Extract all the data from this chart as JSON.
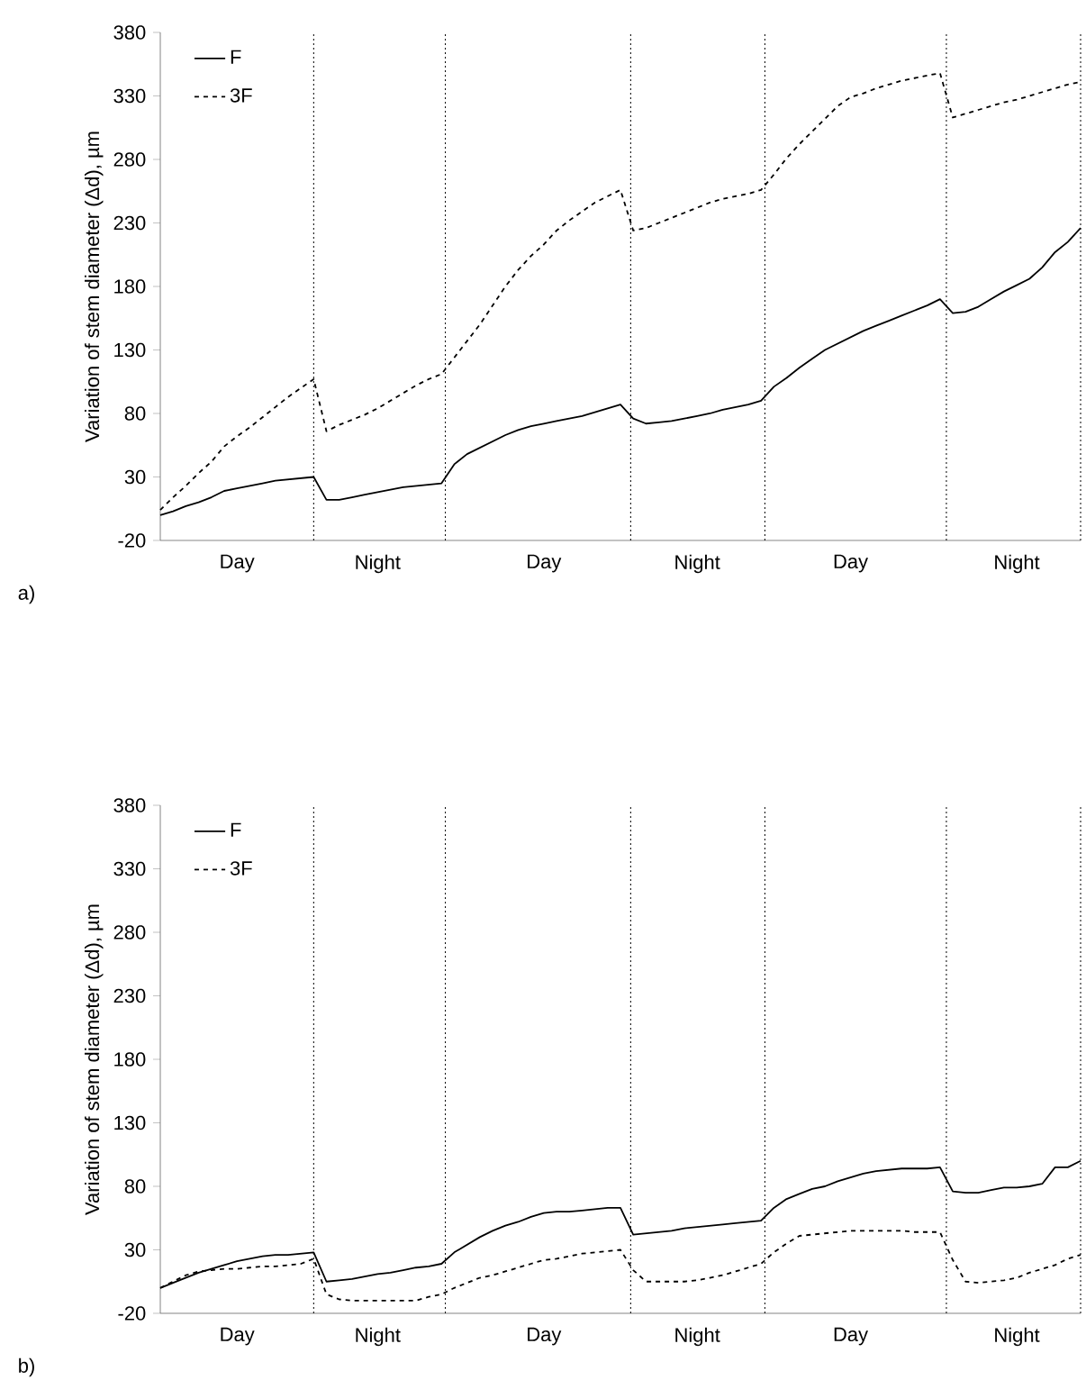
{
  "chart_data": [
    {
      "type": "line",
      "ylabel": "Variation of stem diameter (Δd), µm",
      "annotations": [
        "a)"
      ],
      "categories": [
        null,
        null,
        null,
        null,
        null,
        null,
        "Day",
        null,
        null,
        null,
        null,
        null,
        null,
        null,
        null,
        null,
        null,
        "Night",
        null,
        null,
        null,
        null,
        null,
        null,
        null,
        null,
        null,
        null,
        null,
        null,
        "Day",
        null,
        null,
        null,
        null,
        null,
        null,
        null,
        null,
        null,
        null,
        null,
        "Night",
        null,
        null,
        null,
        null,
        null,
        null,
        null,
        null,
        null,
        null,
        null,
        "Day",
        null,
        null,
        null,
        null,
        null,
        null,
        null,
        null,
        null,
        null,
        null,
        null,
        "Night",
        null,
        null,
        null,
        null,
        null
      ],
      "ylim": [
        -20,
        380
      ],
      "yticks": [
        -20,
        30,
        80,
        130,
        180,
        230,
        280,
        330,
        380
      ],
      "legend": "top left",
      "grid": false,
      "marker": "none",
      "series": [
        {
          "name": "F",
          "color": "#000000",
          "line_style": "solid",
          "values": [
            0,
            3,
            7,
            10,
            14,
            19,
            21,
            23,
            25,
            27,
            28,
            29,
            30,
            12,
            12,
            14,
            16,
            18,
            20,
            22,
            23,
            24,
            25,
            40,
            48,
            53,
            58,
            63,
            67,
            70,
            72,
            74,
            76,
            78,
            81,
            84,
            87,
            76,
            72,
            73,
            74,
            76,
            78,
            80,
            83,
            85,
            87,
            90,
            101,
            108,
            116,
            123,
            130,
            135,
            140,
            145,
            149,
            153,
            157,
            161,
            165,
            170,
            159,
            160,
            164,
            170,
            176,
            181,
            186,
            195,
            207,
            215,
            226
          ]
        },
        {
          "name": "3F",
          "color": "#000000",
          "line_style": "dashed",
          "values": [
            4,
            14,
            23,
            33,
            42,
            54,
            62,
            69,
            77,
            85,
            93,
            100,
            107,
            66,
            71,
            75,
            79,
            84,
            90,
            96,
            102,
            107,
            111,
            124,
            137,
            150,
            165,
            180,
            193,
            204,
            213,
            224,
            232,
            239,
            246,
            251,
            256,
            224,
            226,
            230,
            234,
            238,
            242,
            246,
            249,
            251,
            253,
            256,
            268,
            281,
            292,
            302,
            312,
            322,
            329,
            332,
            336,
            339,
            342,
            344,
            346,
            348,
            313,
            316,
            319,
            322,
            325,
            327,
            330,
            333,
            336,
            339,
            341
          ]
        }
      ]
    },
    {
      "type": "line",
      "ylabel": "Variation of stem diameter (Δd), µm",
      "annotations": [
        "b)"
      ],
      "categories": [
        null,
        null,
        null,
        null,
        null,
        null,
        "Day",
        null,
        null,
        null,
        null,
        null,
        null,
        null,
        null,
        null,
        null,
        "Night",
        null,
        null,
        null,
        null,
        null,
        null,
        null,
        null,
        null,
        null,
        null,
        null,
        "Day",
        null,
        null,
        null,
        null,
        null,
        null,
        null,
        null,
        null,
        null,
        null,
        "Night",
        null,
        null,
        null,
        null,
        null,
        null,
        null,
        null,
        null,
        null,
        null,
        "Day",
        null,
        null,
        null,
        null,
        null,
        null,
        null,
        null,
        null,
        null,
        null,
        null,
        "Night",
        null,
        null,
        null,
        null,
        null
      ],
      "ylim": [
        -20,
        380
      ],
      "yticks": [
        -20,
        30,
        80,
        130,
        180,
        230,
        280,
        330,
        380
      ],
      "legend": "top left",
      "grid": false,
      "marker": "none",
      "series": [
        {
          "name": "F",
          "color": "#000000",
          "line_style": "solid",
          "values": [
            0,
            4,
            8,
            12,
            15,
            18,
            21,
            23,
            25,
            26,
            26,
            27,
            28,
            5,
            6,
            7,
            9,
            11,
            12,
            14,
            16,
            17,
            19,
            28,
            34,
            40,
            45,
            49,
            52,
            56,
            59,
            60,
            60,
            61,
            62,
            63,
            63,
            42,
            43,
            44,
            45,
            47,
            48,
            49,
            50,
            51,
            52,
            53,
            63,
            70,
            74,
            78,
            80,
            84,
            87,
            90,
            92,
            93,
            94,
            94,
            94,
            95,
            76,
            75,
            75,
            77,
            79,
            79,
            80,
            82,
            95,
            95,
            100
          ]
        },
        {
          "name": "3F",
          "color": "#000000",
          "line_style": "dashed",
          "values": [
            0,
            5,
            10,
            13,
            14,
            15,
            15,
            16,
            17,
            17,
            18,
            19,
            23,
            -5,
            -9,
            -10,
            -10,
            -10,
            -10,
            -10,
            -10,
            -7,
            -5,
            0,
            4,
            8,
            10,
            13,
            16,
            19,
            22,
            23,
            25,
            27,
            28,
            29,
            30,
            14,
            5,
            5,
            5,
            5,
            6,
            8,
            10,
            13,
            16,
            19,
            28,
            35,
            41,
            42,
            43,
            44,
            45,
            45,
            45,
            45,
            45,
            44,
            44,
            44,
            22,
            5,
            4,
            5,
            6,
            8,
            12,
            15,
            18,
            23,
            26
          ]
        }
      ]
    }
  ]
}
